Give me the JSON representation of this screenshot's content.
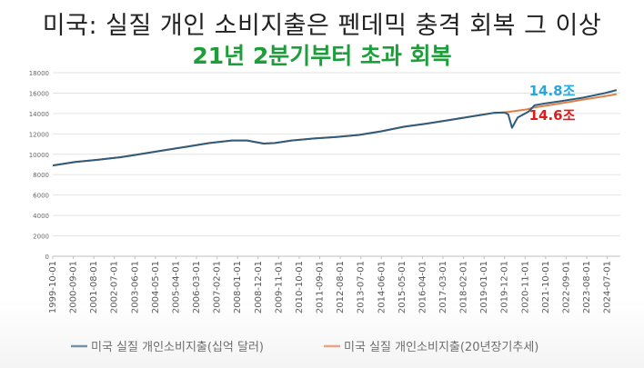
{
  "title": "미국: 실질 개인 소비지출은 펜데믹 충격 회복 그 이상",
  "subtitle": "21년 2분기부터 초과 회복",
  "colors": {
    "actual": "#2e5c7d",
    "trend": "#e07f45",
    "annotation_actual": "#2aa6df",
    "annotation_trend": "#e01b1b",
    "subtitle": "#1e9e3a"
  },
  "chart_data": {
    "type": "line",
    "title": "",
    "xlabel": "",
    "ylabel": "",
    "ylim": [
      0,
      18000
    ],
    "yticks": [
      "0",
      "2000",
      "4000",
      "6000",
      "8000",
      "10000",
      "12000",
      "14000",
      "16000",
      "18000"
    ],
    "grid": true,
    "legend": "bottom",
    "xticks": [
      "1999-10-01",
      "2000-09-01",
      "2001-08-01",
      "2002-07-01",
      "2003-06-01",
      "2004-05-01",
      "2005-04-01",
      "2006-03-01",
      "2007-02-01",
      "2008-01-01",
      "2008-12-01",
      "2009-11-01",
      "2010-10-01",
      "2011-09-01",
      "2012-08-01",
      "2013-07-01",
      "2014-06-01",
      "2015-05-01",
      "2016-04-01",
      "2017-03-01",
      "2018-02-01",
      "2019-01-01",
      "2019-12-01",
      "2020-11-01",
      "2021-10-01",
      "2022-09-01",
      "2023-08-01",
      "2024-07-01"
    ],
    "series": [
      {
        "name": "미국 실질 개인소비지출(십억 달러)",
        "x": [
          "1999-10",
          "2000-10",
          "2001-10",
          "2002-10",
          "2003-10",
          "2004-10",
          "2005-10",
          "2006-10",
          "2007-10",
          "2008-06",
          "2009-03",
          "2009-09",
          "2010-06",
          "2011-06",
          "2012-06",
          "2013-06",
          "2014-06",
          "2015-06",
          "2016-06",
          "2017-06",
          "2018-06",
          "2019-06",
          "2019-12",
          "2020-02",
          "2020-04",
          "2020-07",
          "2020-10",
          "2021-01",
          "2021-04",
          "2021-10",
          "2022-06",
          "2023-06",
          "2024-06",
          "2024-12"
        ],
        "values": [
          8900,
          9250,
          9450,
          9700,
          10050,
          10400,
          10750,
          11100,
          11350,
          11350,
          11050,
          11100,
          11350,
          11550,
          11700,
          11900,
          12250,
          12700,
          13000,
          13350,
          13700,
          14050,
          14100,
          13900,
          12600,
          13600,
          13900,
          14200,
          14800,
          15000,
          15200,
          15550,
          16000,
          16300
        ]
      },
      {
        "name": "미국 실질 개인소비지출(20년장기추세)",
        "x": [
          "1999-10",
          "2000-10",
          "2001-10",
          "2002-10",
          "2003-10",
          "2004-10",
          "2005-10",
          "2006-10",
          "2007-10",
          "2008-06",
          "2009-03",
          "2009-09",
          "2010-06",
          "2011-06",
          "2012-06",
          "2013-06",
          "2014-06",
          "2015-06",
          "2016-06",
          "2017-06",
          "2018-06",
          "2019-06",
          "2019-12",
          "2020-12",
          "2021-04",
          "2022-06",
          "2023-06",
          "2024-06",
          "2024-12"
        ],
        "values": [
          8900,
          9250,
          9450,
          9700,
          10050,
          10400,
          10750,
          11100,
          11350,
          11350,
          11050,
          11100,
          11350,
          11550,
          11700,
          11900,
          12250,
          12700,
          13000,
          13350,
          13700,
          14050,
          14100,
          14400,
          14600,
          15000,
          15350,
          15700,
          15900
        ]
      }
    ],
    "annotations": [
      {
        "text": "14.8조",
        "x": "2021-04",
        "y": 14800,
        "series": 0
      },
      {
        "text": "14.6조",
        "x": "2021-04",
        "y": 14600,
        "series": 1
      }
    ]
  }
}
